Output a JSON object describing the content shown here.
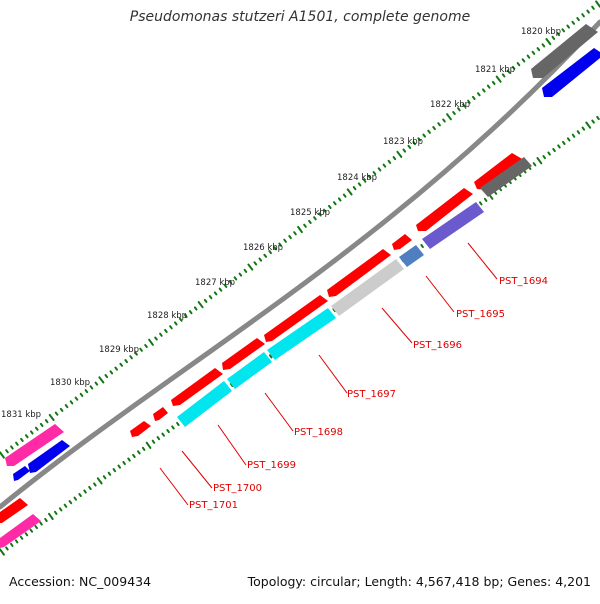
{
  "title": "Pseudomonas stutzeri A1501, complete genome",
  "accession_label": "Accession: NC_009434",
  "summary_label": "Topology: circular; Length: 4,567,418 bp; Genes: 4,201",
  "kbp_ticks": [
    "1820 kbp",
    "1821 kbp",
    "1822 kbp",
    "1823 kbp",
    "1824 kbp",
    "1825 kbp",
    "1826 kbp",
    "1827 kbp",
    "1828 kbp",
    "1829 kbp",
    "1830 kbp",
    "1831 kbp"
  ],
  "gene_labels": [
    "PST_1694",
    "PST_1695",
    "PST_1696",
    "PST_1697",
    "PST_1698",
    "PST_1699",
    "PST_1700",
    "PST_1701"
  ],
  "colors": {
    "cds_red": "#ff0000",
    "backbone": "#888888",
    "tick_green": "#117711",
    "label_red": "#e00000",
    "gray": "#666666",
    "blue": "#0000ee",
    "cyan": "#00e5ee",
    "light_gray": "#cccccc",
    "steel_blue": "#4f7fbf",
    "slate_blue": "#6a5acd",
    "pink": "#ff2aa5"
  }
}
